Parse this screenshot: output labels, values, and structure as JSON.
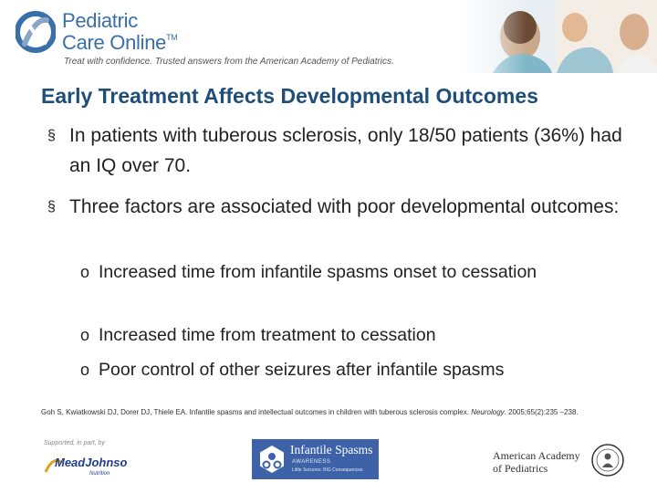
{
  "header": {
    "logo_line1": "Pediatric",
    "logo_line2": "Care Online",
    "logo_tm": "TM",
    "tagline": "Treat with confidence. Trusted answers from the American Academy of Pediatrics."
  },
  "slide": {
    "title": "Early Treatment Affects Developmental Outcomes",
    "bullet_mark": "§",
    "sub_mark": "o",
    "bullets": [
      {
        "text": "In patients with tuberous sclerosis, only 18/50 patients (36%) had an IQ over 70."
      },
      {
        "text": "Three factors are associated with poor developmental outcomes:"
      }
    ],
    "sub_bullets": [
      {
        "text": "Increased time from infantile spasms onset to cessation"
      },
      {
        "text": "Increased time from treatment to cessation"
      },
      {
        "text": "Poor control of other seizures after infantile spasms"
      }
    ],
    "citation": {
      "pre": "Goh S, Kwiatkowski DJ, Dorer DJ, Thiele EA. Infantile spasms and intellectual outcomes in children with tuberous sclerosis complex.",
      "journal": "Neurology",
      "post": ". 2005;65(2):235 –238."
    }
  },
  "footer": {
    "support_text": "Supported, in part, by",
    "meadjohnson_line1": "MeadJohnson",
    "meadjohnson_line2": "Nutrition",
    "isa_title": "Infantile Spasms",
    "isa_sub": "AWARENESS",
    "isa_tagline": "Little Seizures: BIG Consequences",
    "aap_line1": "American Academy",
    "aap_line2": "of Pediatrics"
  },
  "colors": {
    "title": "#1f4e79",
    "logo": "#3a6fa8",
    "isa_bg": "#3d62a8",
    "meadjohnson": "#1f3f8a"
  }
}
